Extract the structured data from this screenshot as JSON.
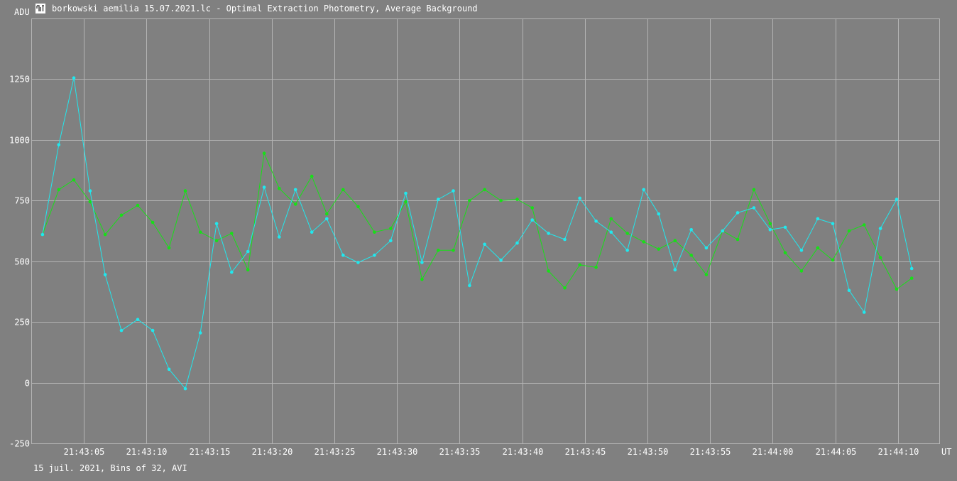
{
  "window": {
    "title": "borkowski aemilia 15.07.2021.lc - Optimal Extraction Photometry, Average Background",
    "icon": "app-logo-icon"
  },
  "footer": {
    "info": "15 juil. 2021, Bins of 32, AVI"
  },
  "colors": {
    "background": "#808080",
    "grid": "#b4b4b4",
    "text": "#ffffff",
    "series_cyan": "#20e8ee",
    "series_green": "#17e017"
  },
  "chart_data": {
    "type": "line",
    "ylabel": "ADU",
    "xunit": "UT",
    "ylim": [
      -250,
      1500
    ],
    "yticks": [
      -250,
      0,
      250,
      500,
      750,
      1000,
      1250
    ],
    "xlim": [
      "21:43:00.8",
      "21:44:13.3"
    ],
    "xticks": [
      "21:43:05",
      "21:43:10",
      "21:43:15",
      "21:43:20",
      "21:43:25",
      "21:43:30",
      "21:43:35",
      "21:43:40",
      "21:43:45",
      "21:43:50",
      "21:43:55",
      "21:44:00",
      "21:44:05",
      "21:44:10"
    ],
    "grid": true,
    "x": [
      "21:43:01.7",
      "21:43:03.0",
      "21:43:04.2",
      "21:43:05.5",
      "21:43:06.7",
      "21:43:08.0",
      "21:43:09.3",
      "21:43:10.5",
      "21:43:11.8",
      "21:43:13.1",
      "21:43:14.3",
      "21:43:15.6",
      "21:43:16.8",
      "21:43:18.1",
      "21:43:19.4",
      "21:43:20.6",
      "21:43:21.9",
      "21:43:23.2",
      "21:43:24.4",
      "21:43:25.7",
      "21:43:26.9",
      "21:43:28.2",
      "21:43:29.5",
      "21:43:30.7",
      "21:43:32.0",
      "21:43:33.3",
      "21:43:34.5",
      "21:43:35.8",
      "21:43:37.0",
      "21:43:38.3",
      "21:43:39.6",
      "21:43:40.8",
      "21:43:42.1",
      "21:43:43.4",
      "21:43:44.6",
      "21:43:45.9",
      "21:43:47.1",
      "21:43:48.4",
      "21:43:49.7",
      "21:43:50.9",
      "21:43:52.2",
      "21:43:53.5",
      "21:43:54.7",
      "21:43:56.0",
      "21:43:57.2",
      "21:43:58.5",
      "21:43:59.8",
      "21:44:01.0",
      "21:44:02.3",
      "21:44:03.6",
      "21:44:04.8",
      "21:44:06.1",
      "21:44:07.3",
      "21:44:08.6",
      "21:44:09.9",
      "21:44:11.1"
    ],
    "series": [
      {
        "color": "#20e8ee",
        "values": [
          610,
          980,
          1255,
          790,
          445,
          215,
          260,
          215,
          55,
          -25,
          205,
          655,
          455,
          540,
          805,
          600,
          795,
          620,
          675,
          525,
          495,
          525,
          585,
          780,
          495,
          755,
          790,
          400,
          570,
          505,
          575,
          670,
          615,
          590,
          760,
          665,
          620,
          545,
          795,
          695,
          465,
          630,
          555,
          625,
          700,
          720,
          630,
          640,
          545,
          675,
          655,
          380,
          290,
          635,
          755,
          470
        ]
      },
      {
        "color": "#17e017",
        "values": [
          610,
          795,
          835,
          745,
          610,
          690,
          730,
          660,
          555,
          790,
          620,
          585,
          615,
          465,
          945,
          800,
          735,
          850,
          695,
          795,
          725,
          620,
          635,
          745,
          425,
          545,
          545,
          750,
          795,
          750,
          755,
          720,
          460,
          390,
          485,
          475,
          675,
          615,
          580,
          550,
          585,
          525,
          445,
          625,
          590,
          795,
          655,
          535,
          460,
          555,
          505,
          625,
          650,
          515,
          385,
          430
        ]
      }
    ]
  }
}
